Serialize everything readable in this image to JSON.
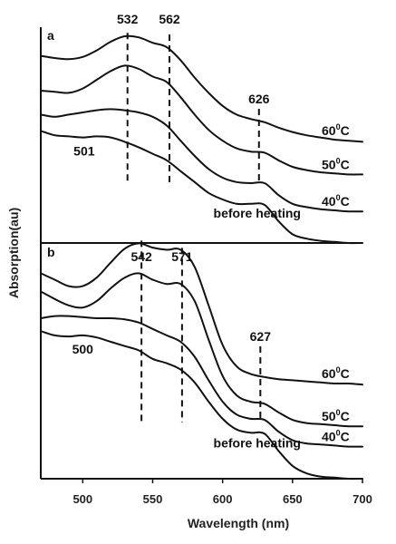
{
  "chart_data": {
    "type": "line",
    "xlabel": "Wavelength (nm)",
    "ylabel": "Absorption(au)",
    "xlim": [
      470,
      700
    ],
    "xticks": [
      "500",
      "550",
      "600",
      "650",
      "700"
    ],
    "panels": [
      {
        "label": "a",
        "x": [
          470,
          480,
          490,
          500,
          510,
          520,
          530,
          540,
          550,
          560,
          570,
          580,
          590,
          600,
          610,
          620,
          630,
          640,
          650,
          660,
          670,
          680,
          690,
          700
        ],
        "series": [
          {
            "name": "60°C",
            "sup": "0",
            "values": [
              1.72,
              1.7,
              1.69,
              1.71,
              1.77,
              1.85,
              1.9,
              1.89,
              1.84,
              1.8,
              1.68,
              1.52,
              1.38,
              1.26,
              1.18,
              1.14,
              1.11,
              1.06,
              1.02,
              0.99,
              0.97,
              0.95,
              0.94,
              0.93
            ]
          },
          {
            "name": "50°C",
            "sup": "0",
            "values": [
              1.4,
              1.39,
              1.38,
              1.42,
              1.5,
              1.58,
              1.63,
              1.6,
              1.53,
              1.48,
              1.34,
              1.18,
              1.04,
              0.94,
              0.87,
              0.84,
              0.83,
              0.76,
              0.7,
              0.67,
              0.65,
              0.64,
              0.63,
              0.63
            ]
          },
          {
            "name": "40°C",
            "sup": "0",
            "values": [
              1.18,
              1.16,
              1.18,
              1.2,
              1.22,
              1.23,
              1.22,
              1.2,
              1.16,
              1.08,
              0.94,
              0.8,
              0.68,
              0.6,
              0.56,
              0.55,
              0.55,
              0.44,
              0.36,
              0.33,
              0.31,
              0.3,
              0.29,
              0.29
            ]
          },
          {
            "name": "before heating",
            "sup": "",
            "values": [
              1.03,
              0.99,
              0.98,
              0.97,
              0.98,
              0.97,
              0.93,
              0.88,
              0.82,
              0.76,
              0.66,
              0.56,
              0.46,
              0.4,
              0.36,
              0.36,
              0.35,
              0.2,
              0.08,
              0.04,
              0.02,
              0.01,
              0.0,
              0.0
            ]
          }
        ],
        "peaks": [
          {
            "label": "532",
            "x": 532
          },
          {
            "label": "562",
            "x": 562
          },
          {
            "label": "626",
            "x": 626
          },
          {
            "label": "501",
            "x": 501
          }
        ]
      },
      {
        "label": "b",
        "x": [
          470,
          480,
          490,
          500,
          510,
          520,
          530,
          540,
          550,
          560,
          570,
          580,
          590,
          600,
          610,
          620,
          630,
          640,
          650,
          660,
          670,
          680,
          690,
          700
        ],
        "series": [
          {
            "name": "60°C",
            "sup": "0",
            "values": [
              1.92,
              1.86,
              1.8,
              1.8,
              1.88,
              2.02,
              2.15,
              2.2,
              2.16,
              2.14,
              2.14,
              1.98,
              1.62,
              1.25,
              1.05,
              0.98,
              0.95,
              0.93,
              0.92,
              0.91,
              0.9,
              0.89,
              0.89,
              0.88
            ]
          },
          {
            "name": "50°C",
            "sup": "0",
            "values": [
              1.75,
              1.68,
              1.62,
              1.6,
              1.66,
              1.78,
              1.88,
              1.92,
              1.86,
              1.82,
              1.82,
              1.66,
              1.3,
              0.96,
              0.78,
              0.72,
              0.7,
              0.62,
              0.55,
              0.52,
              0.51,
              0.5,
              0.49,
              0.49
            ]
          },
          {
            "name": "40°C",
            "sup": "0",
            "values": [
              1.5,
              1.52,
              1.52,
              1.51,
              1.5,
              1.5,
              1.49,
              1.46,
              1.4,
              1.34,
              1.28,
              1.14,
              0.92,
              0.72,
              0.6,
              0.56,
              0.55,
              0.44,
              0.36,
              0.33,
              0.32,
              0.31,
              0.3,
              0.3
            ]
          },
          {
            "name": "before heating",
            "sup": "",
            "values": [
              1.38,
              1.34,
              1.33,
              1.34,
              1.32,
              1.28,
              1.24,
              1.2,
              1.12,
              1.08,
              1.02,
              0.9,
              0.72,
              0.56,
              0.46,
              0.43,
              0.42,
              0.26,
              0.12,
              0.05,
              0.02,
              0.01,
              0.0,
              0.0
            ]
          }
        ],
        "peaks": [
          {
            "label": "542",
            "x": 542
          },
          {
            "label": "571",
            "x": 571
          },
          {
            "label": "627",
            "x": 627
          },
          {
            "label": "500",
            "x": 500
          }
        ]
      }
    ]
  }
}
